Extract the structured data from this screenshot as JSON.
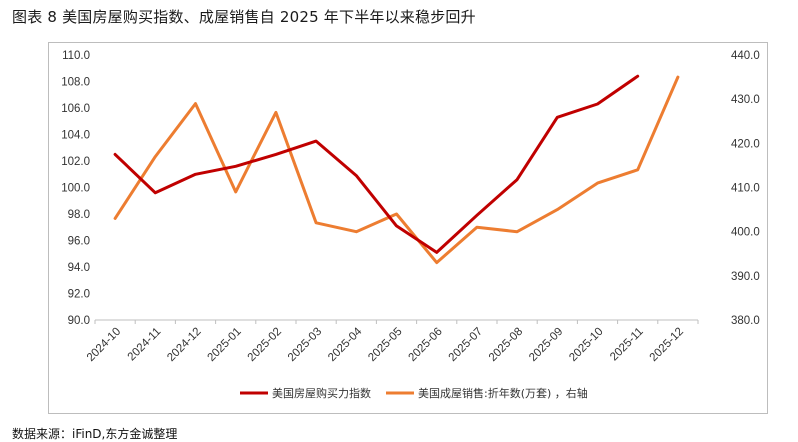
{
  "title": "图表 8  美国房屋购买指数、成屋销售自 2025 年下半年以来稳步回升",
  "source": "数据来源：iFinD,东方金诚整理",
  "chart_data": {
    "type": "line",
    "categories": [
      "2024-10",
      "2024-11",
      "2024-12",
      "2025-01",
      "2025-02",
      "2025-03",
      "2025-04",
      "2025-05",
      "2025-06",
      "2025-07",
      "2025-08",
      "2025-09",
      "2025-10",
      "2025-11",
      "2025-12"
    ],
    "y_left": {
      "ylim": [
        90,
        110
      ],
      "ticks": [
        "90.0",
        "92.0",
        "94.0",
        "96.0",
        "98.0",
        "100.0",
        "102.0",
        "104.0",
        "106.0",
        "108.0",
        "110.0"
      ]
    },
    "y_right": {
      "ylim": [
        380,
        440
      ],
      "ticks": [
        "380.0",
        "390.0",
        "400.0",
        "410.0",
        "420.0",
        "430.0",
        "440.0"
      ]
    },
    "series": [
      {
        "name": "美国房屋购买力指数",
        "axis": "left",
        "color": "#c00000",
        "values": [
          102.5,
          99.6,
          101.0,
          101.6,
          102.5,
          103.5,
          100.9,
          97.1,
          95.1,
          97.9,
          100.6,
          105.3,
          106.3,
          108.4,
          null
        ]
      },
      {
        "name": "美国成屋销售:折年数(万套) ，右轴",
        "axis": "right",
        "color": "#ed7d31",
        "values": [
          403,
          417,
          429,
          409,
          427,
          402,
          400,
          404,
          393,
          401,
          400,
          405,
          411,
          414,
          435
        ]
      }
    ],
    "grid": false,
    "legend_position": "bottom"
  }
}
